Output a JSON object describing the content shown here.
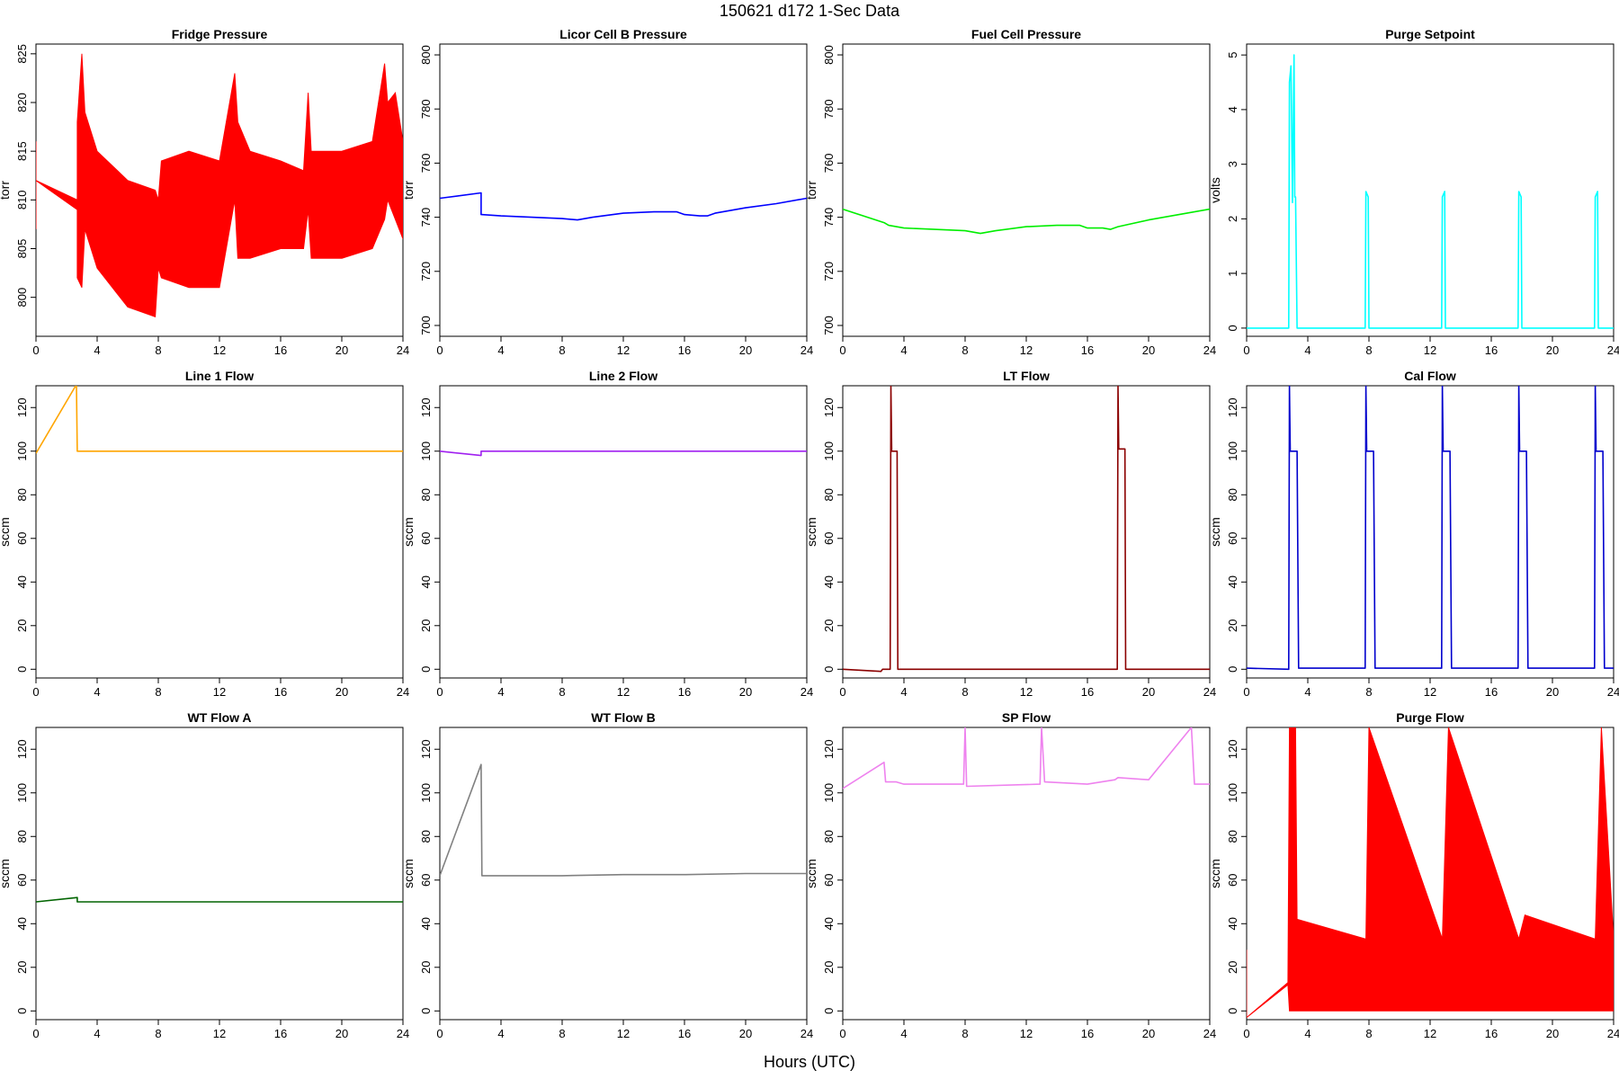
{
  "figure": {
    "title": "150621   d172   1-Sec Data",
    "xlabel": "Hours (UTC)"
  },
  "chart_data": [
    {
      "type": "line",
      "title": "Fridge Pressure",
      "ylabel": "torr",
      "color": "#ff0000",
      "xlim": [
        0,
        24
      ],
      "ylim": [
        796,
        826
      ],
      "xticks": [
        0,
        4,
        8,
        12,
        16,
        20,
        24
      ],
      "yticks": [
        800,
        805,
        810,
        815,
        820,
        825
      ],
      "x": [
        0,
        0,
        2.7,
        2.7,
        3,
        3.2,
        4,
        6,
        7.8,
        8,
        8.2,
        10,
        12,
        13,
        13.2,
        14,
        16,
        17.5,
        17.8,
        18,
        20,
        22,
        22.8,
        23,
        23.5,
        24
      ],
      "y_high": [
        816,
        812,
        810,
        818,
        825,
        819,
        815,
        812,
        811,
        810,
        814,
        815,
        814,
        823,
        818,
        815,
        814,
        813,
        821,
        815,
        815,
        816,
        824,
        820,
        821,
        816
      ],
      "y_low": [
        807,
        812,
        809,
        802,
        801,
        807,
        803,
        799,
        798,
        803,
        802,
        801,
        801,
        810,
        804,
        804,
        805,
        805,
        809,
        804,
        804,
        805,
        808,
        810,
        808,
        806
      ]
    },
    {
      "type": "line",
      "title": "Licor Cell B Pressure",
      "ylabel": "torr",
      "color": "#0000ff",
      "xlim": [
        0,
        24
      ],
      "ylim": [
        696,
        804
      ],
      "xticks": [
        0,
        4,
        8,
        12,
        16,
        20,
        24
      ],
      "yticks": [
        700,
        720,
        740,
        760,
        780,
        800
      ],
      "x": [
        0,
        2.7,
        2.7,
        4,
        6,
        8,
        9,
        10,
        12,
        14,
        15.5,
        16,
        17,
        17.5,
        18,
        20,
        22,
        24
      ],
      "y": [
        747,
        749,
        741,
        740.5,
        740,
        739.5,
        739,
        740,
        741.5,
        742,
        742,
        741,
        740.5,
        740.5,
        741.5,
        743.5,
        745,
        747
      ]
    },
    {
      "type": "line",
      "title": "Fuel Cell Pressure",
      "ylabel": "torr",
      "color": "#00ee00",
      "xlim": [
        0,
        24
      ],
      "ylim": [
        696,
        804
      ],
      "xticks": [
        0,
        4,
        8,
        12,
        16,
        20,
        24
      ],
      "yticks": [
        700,
        720,
        740,
        760,
        780,
        800
      ],
      "x": [
        0,
        2.7,
        3,
        4,
        6,
        8,
        9,
        10,
        12,
        14,
        15.5,
        16,
        17,
        17.5,
        18,
        20,
        22,
        24
      ],
      "y": [
        743,
        738,
        737,
        736,
        735.5,
        735,
        734,
        735,
        736.5,
        737,
        737,
        736,
        736,
        735.5,
        736.5,
        739,
        741,
        743
      ]
    },
    {
      "type": "line",
      "title": "Purge Setpoint",
      "ylabel": "volts",
      "color": "#00ffff",
      "xlim": [
        0,
        24
      ],
      "ylim": [
        -0.15,
        5.2
      ],
      "xticks": [
        0,
        4,
        8,
        12,
        16,
        20,
        24
      ],
      "yticks": [
        0,
        1,
        2,
        3,
        4,
        5
      ],
      "x": [
        0,
        2.75,
        2.8,
        2.9,
        3.0,
        3.1,
        3.15,
        3.2,
        3.3,
        7.75,
        7.8,
        7.95,
        8.0,
        12.75,
        12.8,
        12.95,
        13.0,
        17.75,
        17.8,
        17.95,
        18.0,
        22.75,
        22.8,
        22.95,
        23.0,
        24
      ],
      "y": [
        0,
        0,
        4.5,
        4.8,
        2.3,
        5.0,
        2.4,
        2.4,
        0,
        0,
        2.5,
        2.4,
        0,
        0,
        2.4,
        2.5,
        0,
        0,
        2.5,
        2.4,
        0,
        0,
        2.4,
        2.5,
        0,
        0
      ]
    },
    {
      "type": "line",
      "title": "Line 1 Flow",
      "ylabel": "sccm",
      "color": "#ffa500",
      "xlim": [
        0,
        24
      ],
      "ylim": [
        -4,
        130
      ],
      "xticks": [
        0,
        4,
        8,
        12,
        16,
        20,
        24
      ],
      "yticks": [
        0,
        20,
        40,
        60,
        80,
        100,
        120
      ],
      "x": [
        0,
        2.6,
        2.65,
        2.7,
        24
      ],
      "y": [
        99,
        130,
        130,
        100,
        100
      ]
    },
    {
      "type": "line",
      "title": "Line 2 Flow",
      "ylabel": "sccm",
      "color": "#a020f0",
      "xlim": [
        0,
        24
      ],
      "ylim": [
        -4,
        130
      ],
      "xticks": [
        0,
        4,
        8,
        12,
        16,
        20,
        24
      ],
      "yticks": [
        0,
        20,
        40,
        60,
        80,
        100,
        120
      ],
      "x": [
        0,
        2.7,
        2.7,
        24
      ],
      "y": [
        100,
        98,
        100,
        100
      ]
    },
    {
      "type": "line",
      "title": "LT Flow",
      "ylabel": "sccm",
      "color": "#8b0000",
      "xlim": [
        0,
        24
      ],
      "ylim": [
        -4,
        130
      ],
      "xticks": [
        0,
        4,
        8,
        12,
        16,
        20,
        24
      ],
      "yticks": [
        0,
        20,
        40,
        60,
        80,
        100,
        120
      ],
      "x": [
        0,
        2.5,
        2.6,
        3.1,
        3.15,
        3.2,
        3.55,
        3.6,
        17.95,
        18.0,
        18.05,
        18.45,
        18.5,
        24
      ],
      "y": [
        0,
        -1,
        0,
        0,
        130,
        100,
        100,
        0,
        0,
        130,
        101,
        101,
        0,
        0
      ]
    },
    {
      "type": "line",
      "title": "Cal Flow",
      "ylabel": "sccm",
      "color": "#0000cd",
      "xlim": [
        0,
        24
      ],
      "ylim": [
        -4,
        130
      ],
      "xticks": [
        0,
        4,
        8,
        12,
        16,
        20,
        24
      ],
      "yticks": [
        0,
        20,
        40,
        60,
        80,
        100,
        120
      ],
      "x": [
        0,
        2.75,
        2.8,
        2.85,
        3.3,
        3.4,
        7.75,
        7.8,
        7.85,
        8.3,
        8.4,
        12.75,
        12.8,
        12.85,
        13.3,
        13.4,
        17.75,
        17.8,
        17.85,
        18.3,
        18.4,
        22.75,
        22.8,
        22.85,
        23.3,
        23.4,
        24
      ],
      "y": [
        0.5,
        0,
        130,
        100,
        100,
        0.5,
        0.5,
        130,
        100,
        100,
        0.5,
        0.5,
        130,
        100,
        100,
        0.5,
        0.5,
        130,
        100,
        100,
        0.5,
        0.5,
        130,
        100,
        100,
        0.5,
        0.5
      ]
    },
    {
      "type": "line",
      "title": "WT Flow A",
      "ylabel": "sccm",
      "color": "#006400",
      "xlim": [
        0,
        24
      ],
      "ylim": [
        -4,
        130
      ],
      "xticks": [
        0,
        4,
        8,
        12,
        16,
        20,
        24
      ],
      "yticks": [
        0,
        20,
        40,
        60,
        80,
        100,
        120
      ],
      "x": [
        0,
        2.7,
        2.7,
        24
      ],
      "y": [
        50,
        52,
        50,
        50
      ]
    },
    {
      "type": "line",
      "title": "WT Flow B",
      "ylabel": "sccm",
      "color": "#808080",
      "xlim": [
        0,
        24
      ],
      "ylim": [
        -4,
        130
      ],
      "xticks": [
        0,
        4,
        8,
        12,
        16,
        20,
        24
      ],
      "yticks": [
        0,
        20,
        40,
        60,
        80,
        100,
        120
      ],
      "x": [
        0,
        2.7,
        2.75,
        4,
        8,
        12,
        16,
        20,
        24
      ],
      "y": [
        62,
        113,
        62,
        62,
        62,
        62.5,
        62.5,
        63,
        63
      ]
    },
    {
      "type": "line",
      "title": "SP Flow",
      "ylabel": "sccm",
      "color": "#ee82ee",
      "xlim": [
        0,
        24
      ],
      "ylim": [
        -4,
        130
      ],
      "xticks": [
        0,
        4,
        8,
        12,
        16,
        20,
        24
      ],
      "yticks": [
        0,
        20,
        40,
        60,
        80,
        100,
        120
      ],
      "x": [
        0,
        2.7,
        2.8,
        3.5,
        4,
        7.9,
        8.0,
        8.1,
        12.9,
        13.0,
        13.2,
        16,
        17.8,
        18,
        20,
        22.8,
        23,
        24
      ],
      "y": [
        102,
        114,
        105,
        105,
        104,
        104,
        130,
        103,
        104,
        130,
        105,
        104,
        106,
        107,
        106,
        130,
        104,
        104
      ]
    },
    {
      "type": "line",
      "title": "Purge Flow",
      "ylabel": "sccm",
      "color": "#ff0000",
      "xlim": [
        0,
        24
      ],
      "ylim": [
        -4,
        130
      ],
      "xticks": [
        0,
        4,
        8,
        12,
        16,
        20,
        24
      ],
      "yticks": [
        0,
        20,
        40,
        60,
        80,
        100,
        120
      ],
      "x": [
        0,
        0,
        2.7,
        2.8,
        3.2,
        3.3,
        7.8,
        8.0,
        12.8,
        13.2,
        17.8,
        18.2,
        22.8,
        23.2,
        24
      ],
      "y_high": [
        28,
        -3,
        13,
        130,
        130,
        42,
        33,
        130,
        33,
        130,
        33,
        44,
        33,
        130,
        33
      ],
      "y_low": [
        -3,
        -3,
        12,
        0,
        0,
        0,
        0,
        0,
        0,
        0,
        0,
        0,
        0,
        0,
        0
      ]
    }
  ]
}
